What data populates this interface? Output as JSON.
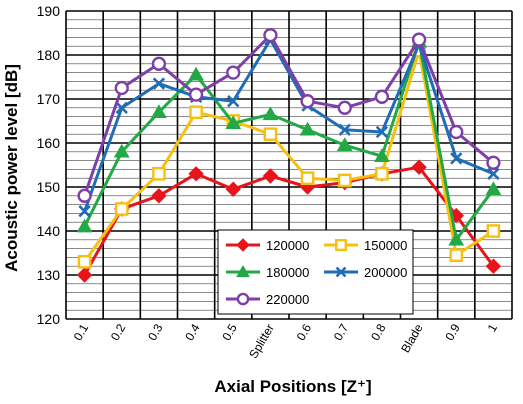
{
  "chart_data": {
    "type": "line",
    "title": "",
    "xlabel": "Axial Positions [Z⁺]",
    "ylabel": "Acoustic power level [dB]",
    "ylim": [
      120,
      190
    ],
    "yticks": [
      120,
      130,
      140,
      150,
      160,
      170,
      180,
      190
    ],
    "grid": true,
    "legend_position": "bottom-center",
    "categories": [
      "0.1",
      "0.2",
      "0.3",
      "0.4",
      "0.5",
      "Splitter",
      "0.6",
      "0.7",
      "0.8",
      "Blade",
      "0.9",
      "1"
    ],
    "series": [
      {
        "name": "120000",
        "color": "#e8141b",
        "marker": "diamond",
        "values": [
          130,
          145,
          148,
          153,
          149.5,
          152.5,
          150,
          151,
          153,
          154.5,
          143.5,
          132
        ]
      },
      {
        "name": "150000",
        "color": "#f7c010",
        "marker": "square",
        "values": [
          133,
          145,
          153,
          167,
          165,
          162,
          152,
          151.5,
          153,
          181,
          134.5,
          140
        ]
      },
      {
        "name": "180000",
        "color": "#22a844",
        "marker": "triangle",
        "values": [
          141,
          158,
          167,
          175.5,
          164.5,
          166.5,
          163,
          159.5,
          157,
          183,
          138,
          149.5
        ]
      },
      {
        "name": "200000",
        "color": "#1f6db5",
        "marker": "x",
        "values": [
          144.5,
          168,
          173.5,
          170.5,
          169.5,
          183.5,
          168.5,
          163,
          162.5,
          182.5,
          156.5,
          153
        ]
      },
      {
        "name": "220000",
        "color": "#7f3fa8",
        "marker": "circle",
        "values": [
          148,
          172.5,
          178,
          171,
          176,
          184.5,
          169.5,
          168,
          170.5,
          183.5,
          162.5,
          155.5
        ]
      }
    ]
  }
}
